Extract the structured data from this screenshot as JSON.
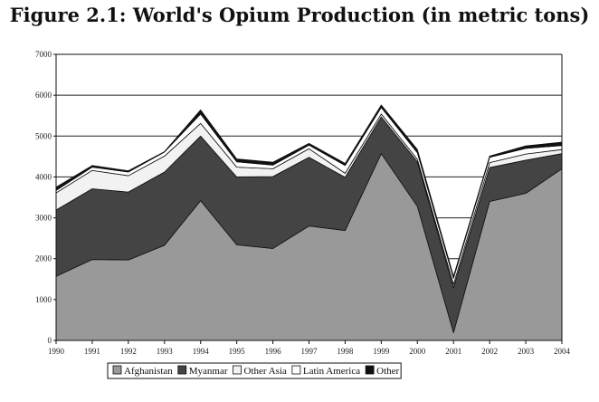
{
  "chart_data": {
    "type": "area",
    "stacked": true,
    "title": "Figure 2.1: World's Opium Production (in metric tons)",
    "xlabel": "",
    "ylabel": "",
    "x": [
      "1990",
      "1991",
      "1992",
      "1993",
      "1994",
      "1995",
      "1996",
      "1997",
      "1998",
      "1999",
      "2000",
      "2001",
      "2002",
      "2003",
      "2004"
    ],
    "ylim": [
      0,
      7000
    ],
    "yticks": [
      0,
      1000,
      2000,
      3000,
      4000,
      5000,
      6000,
      7000
    ],
    "grid": "horizontal",
    "legend_position": "bottom",
    "series": [
      {
        "name": "Afghanistan",
        "color": "#999999",
        "values": [
          1570,
          1980,
          1970,
          2330,
          3420,
          2340,
          2250,
          2800,
          2690,
          4570,
          3280,
          190,
          3400,
          3600,
          4200
        ]
      },
      {
        "name": "Myanmar",
        "color": "#444444",
        "values": [
          1620,
          1730,
          1660,
          1790,
          1580,
          1660,
          1760,
          1680,
          1300,
          900,
          1090,
          1100,
          830,
          810,
          370
        ]
      },
      {
        "name": "Other Asia",
        "color": "#f2f2f2",
        "values": [
          420,
          450,
          400,
          390,
          310,
          240,
          190,
          210,
          100,
          70,
          60,
          80,
          120,
          150,
          100
        ]
      },
      {
        "name": "Latin America",
        "color": "#ffffff",
        "values": [
          60,
          80,
          90,
          100,
          230,
          130,
          90,
          90,
          190,
          160,
          160,
          150,
          130,
          140,
          100
        ]
      },
      {
        "name": "Other",
        "color": "#111111",
        "values": [
          80,
          40,
          30,
          10,
          100,
          70,
          70,
          40,
          50,
          60,
          80,
          50,
          30,
          60,
          80
        ]
      }
    ]
  }
}
